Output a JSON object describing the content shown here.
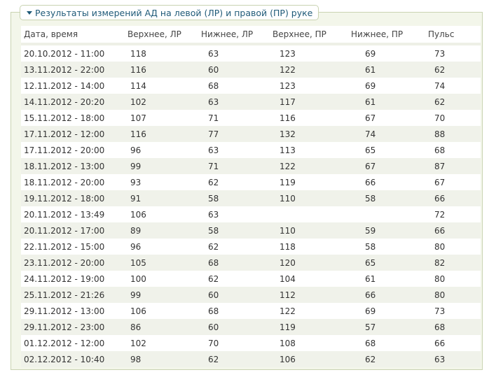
{
  "section": {
    "title": "Результаты измерений АД на левой (ЛР) и правой (ПР) руке",
    "icon": "triangle-down-icon"
  },
  "table": {
    "headers": [
      "Дата, время",
      "Верхнее, ЛР",
      "Нижнее, ЛР",
      "Верхнее, ПР",
      "Нижнее, ПР",
      "Пульс"
    ],
    "rows": [
      [
        "20.10.2012 - 11:00",
        "118",
        "63",
        "123",
        "69",
        "73"
      ],
      [
        "13.11.2012 - 22:00",
        "116",
        "60",
        "122",
        "61",
        "62"
      ],
      [
        "12.11.2012 - 14:00",
        "114",
        "68",
        "123",
        "69",
        "74"
      ],
      [
        "14.11.2012 - 20:20",
        "102",
        "63",
        "117",
        "61",
        "62"
      ],
      [
        "15.11.2012 - 18:00",
        "107",
        "71",
        "116",
        "67",
        "70"
      ],
      [
        "17.11.2012 - 12:00",
        "116",
        "77",
        "132",
        "74",
        "88"
      ],
      [
        "17.11.2012 - 20:00",
        "96",
        "63",
        "113",
        "65",
        "68"
      ],
      [
        "18.11.2012 - 13:00",
        "99",
        "71",
        "122",
        "67",
        "87"
      ],
      [
        "18.11.2012 - 20:00",
        "93",
        "62",
        "119",
        "66",
        "67"
      ],
      [
        "19.11.2012 - 18:00",
        "91",
        "58",
        "110",
        "58",
        "66"
      ],
      [
        "20.11.2012 - 13:49",
        "106",
        "63",
        "",
        "",
        "72"
      ],
      [
        "20.11.2012 - 17:00",
        "89",
        "58",
        "110",
        "59",
        "66"
      ],
      [
        "22.11.2012 - 15:00",
        "96",
        "62",
        "118",
        "58",
        "80"
      ],
      [
        "23.11.2012 - 20:00",
        "105",
        "68",
        "120",
        "65",
        "82"
      ],
      [
        "24.11.2012 - 19:00",
        "100",
        "62",
        "104",
        "61",
        "80"
      ],
      [
        "25.11.2012 - 21:26",
        "99",
        "60",
        "112",
        "66",
        "80"
      ],
      [
        "29.11.2012 - 13:00",
        "106",
        "68",
        "122",
        "69",
        "73"
      ],
      [
        "29.11.2012 - 23:00",
        "86",
        "60",
        "119",
        "57",
        "68"
      ],
      [
        "01.12.2012 - 12:00",
        "102",
        "70",
        "108",
        "68",
        "66"
      ],
      [
        "02.12.2012 - 10:40",
        "98",
        "62",
        "106",
        "62",
        "63"
      ]
    ]
  }
}
